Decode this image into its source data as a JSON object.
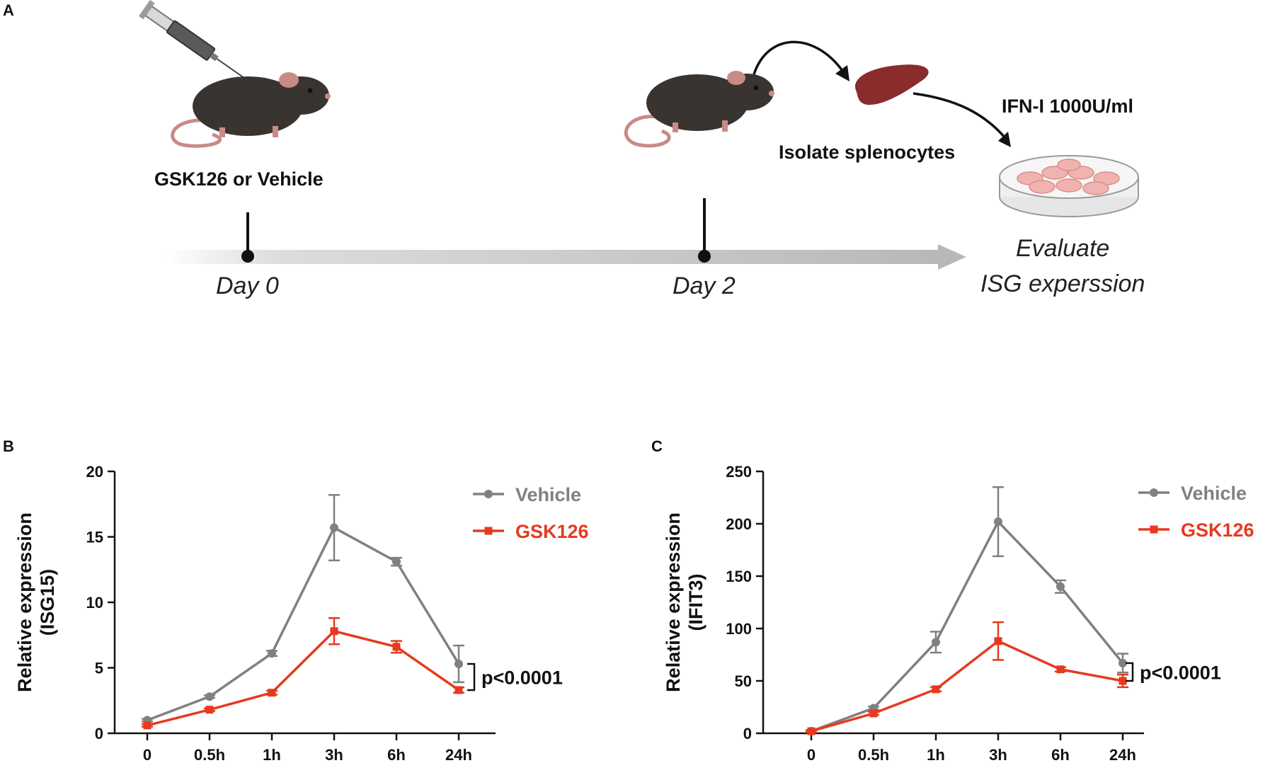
{
  "panels": {
    "a": "A",
    "b": "B",
    "c": "C"
  },
  "schematic": {
    "treatment_label": "GSK126  or Vehicle",
    "day0_label": "Day 0",
    "day2_label": "Day 2",
    "isolate_label": "Isolate splenocytes",
    "ifn_label": "IFN-I 1000U/ml",
    "evaluate_line1": "Evaluate",
    "evaluate_line2": "ISG experssion"
  },
  "colors": {
    "vehicle": "#808080",
    "gsk126": "#e53a1f",
    "axis": "#111111"
  },
  "chart_data": [
    {
      "type": "line",
      "panel": "B",
      "ylabel_line1": "Relative expression",
      "ylabel_line2": "(ISG15)",
      "categories": [
        "0",
        "0.5h",
        "1h",
        "3h",
        "6h",
        "24h"
      ],
      "ylim": [
        0,
        20
      ],
      "yticks": [
        0,
        5,
        10,
        15,
        20
      ],
      "series": [
        {
          "name": "Vehicle",
          "marker": "circle",
          "values": [
            1.0,
            2.8,
            6.1,
            15.7,
            13.1,
            5.3
          ],
          "errors": [
            0.1,
            0.1,
            0.2,
            2.5,
            0.3,
            1.4
          ]
        },
        {
          "name": "GSK126",
          "marker": "square",
          "values": [
            0.6,
            1.8,
            3.1,
            7.8,
            6.6,
            3.3
          ],
          "errors": [
            0.1,
            0.1,
            0.15,
            1.0,
            0.45,
            0.2
          ]
        }
      ],
      "annotation": "p<0.0001",
      "legend": "top-right"
    },
    {
      "type": "line",
      "panel": "C",
      "ylabel_line1": "Relative expression",
      "ylabel_line2": "(IFIT3)",
      "categories": [
        "0",
        "0.5h",
        "1h",
        "3h",
        "6h",
        "24h"
      ],
      "ylim": [
        0,
        250
      ],
      "yticks": [
        0,
        50,
        100,
        150,
        200,
        250
      ],
      "series": [
        {
          "name": "Vehicle",
          "marker": "circle",
          "values": [
            2,
            24,
            87,
            202,
            140,
            67
          ],
          "errors": [
            1,
            1.5,
            10,
            33,
            6,
            9
          ]
        },
        {
          "name": "GSK126",
          "marker": "square",
          "values": [
            2,
            19,
            42,
            88,
            61,
            50
          ],
          "errors": [
            1,
            1.5,
            2,
            18,
            2,
            6
          ]
        }
      ],
      "annotation": "p<0.0001",
      "legend": "top-right"
    }
  ]
}
